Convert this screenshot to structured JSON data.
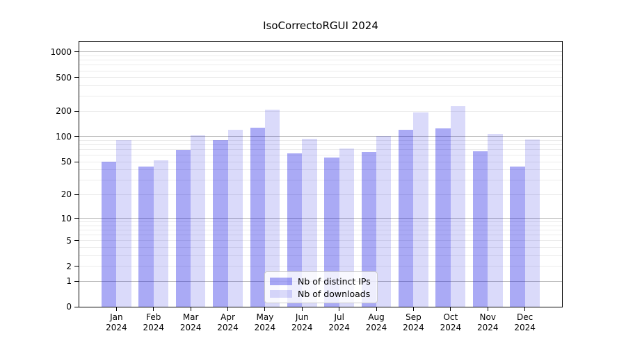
{
  "figure": {
    "title": "IsoCorrectoRGUI 2024"
  },
  "legend": {
    "items": [
      {
        "label": "Nb of distinct IPs"
      },
      {
        "label": "Nb of downloads"
      }
    ]
  },
  "colors": {
    "bar_distinct_ips": "rgba(0,0,225,0.335)",
    "bar_downloads": "rgba(0,0,220,0.145)",
    "grid_major": "#b9b9b9",
    "grid_minor": "#ebebeb",
    "spine": "#000000",
    "legend_border": "#cccccc"
  },
  "chart_data": {
    "type": "bar",
    "title": "IsoCorrectoRGUI 2024",
    "categories": [
      "Jan 2024",
      "Feb 2024",
      "Mar 2024",
      "Apr 2024",
      "May 2024",
      "Jun 2024",
      "Jul 2024",
      "Aug 2024",
      "Sep 2024",
      "Oct 2024",
      "Nov 2024",
      "Dec 2024"
    ],
    "series": [
      {
        "name": "Nb of distinct IPs",
        "values": [
          50,
          44,
          69,
          90,
          128,
          63,
          56,
          66,
          120,
          126,
          67,
          44
        ]
      },
      {
        "name": "Nb of downloads",
        "values": [
          91,
          52,
          103,
          120,
          209,
          94,
          72,
          101,
          193,
          228,
          107,
          92
        ]
      }
    ],
    "xlabel": "",
    "ylabel": "",
    "yscale": "log1p",
    "yticks": [
      0,
      1,
      2,
      5,
      10,
      20,
      50,
      100,
      200,
      500,
      1000
    ],
    "ylim": [
      0,
      1325
    ],
    "grid": true,
    "legend_position": "lower center"
  }
}
